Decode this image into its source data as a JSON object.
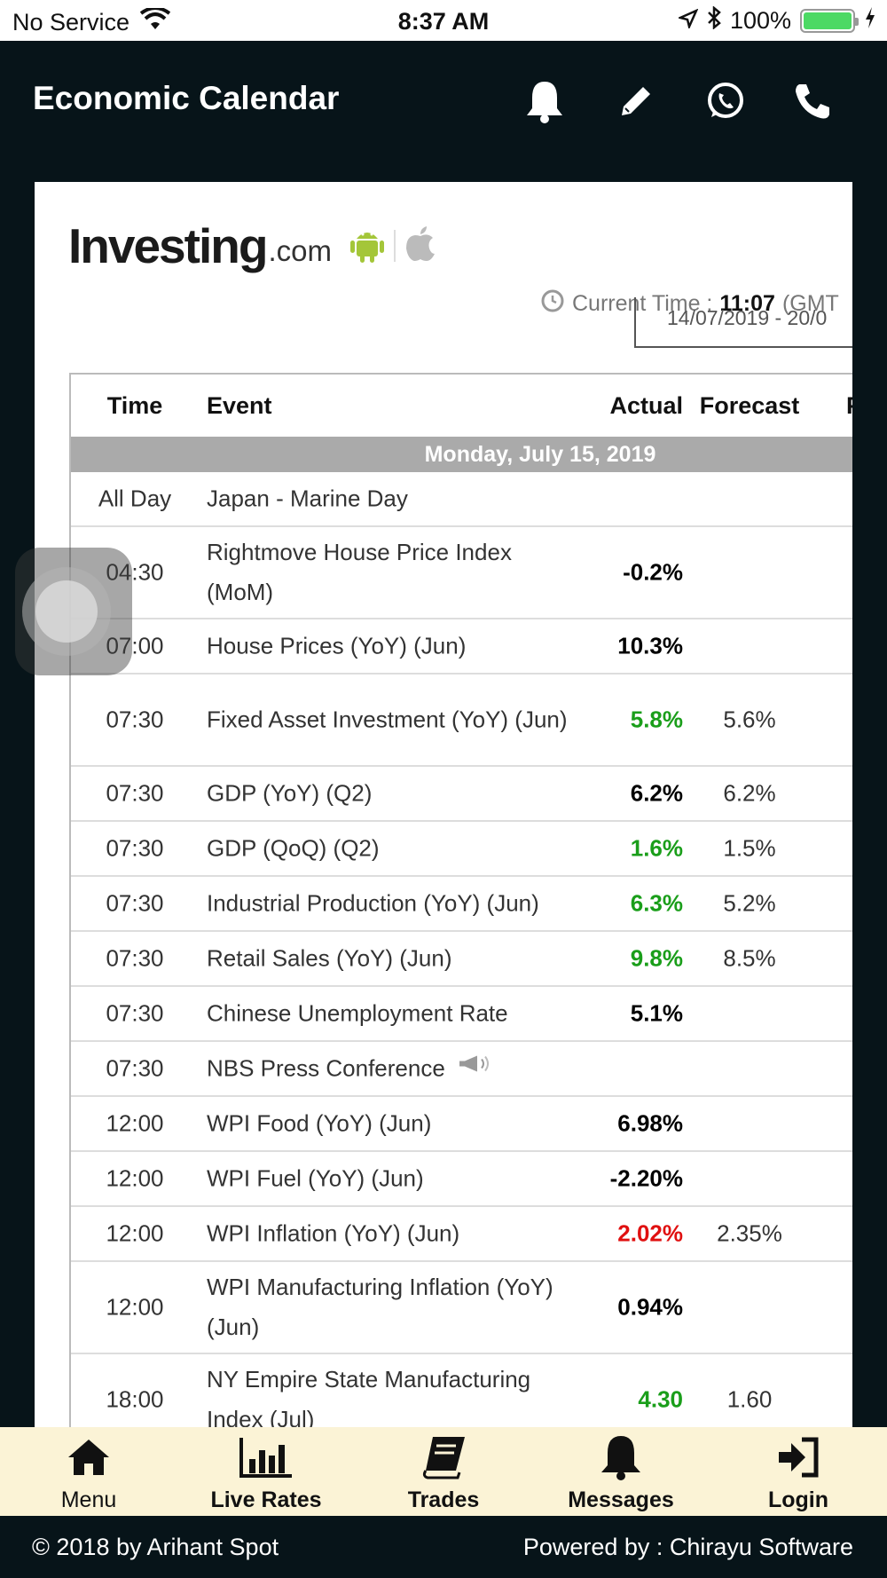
{
  "status_bar": {
    "carrier": "No Service",
    "time": "8:37 AM",
    "battery": "100%"
  },
  "header": {
    "title": "Economic Calendar"
  },
  "card": {
    "logo_text": "Investing",
    "logo_suffix": ".com",
    "current_time_label": "Current Time :",
    "current_time_value": "11:07",
    "timezone": "(GMT",
    "date_range": "14/07/2019 - 20/0",
    "columns": {
      "time": "Time",
      "event": "Event",
      "actual": "Actual",
      "forecast": "Forecast",
      "previous": "P"
    },
    "day_header": "Monday, July 15, 2019",
    "rows": [
      {
        "time": "All Day",
        "event": "Japan - Marine Day",
        "actual": "",
        "forecast": ""
      },
      {
        "time": "04:30",
        "event": "Rightmove House Price Index (MoM)",
        "actual": "-0.2%",
        "forecast": ""
      },
      {
        "time": "07:00",
        "event": "House Prices (YoY) (Jun)",
        "actual": "10.3%",
        "forecast": ""
      },
      {
        "time": "07:30",
        "event": "Fixed Asset Investment (YoY) (Jun)",
        "actual": "5.8%",
        "forecast": "5.6%"
      },
      {
        "time": "07:30",
        "event": "GDP (YoY) (Q2)",
        "actual": "6.2%",
        "forecast": "6.2%"
      },
      {
        "time": "07:30",
        "event": "GDP (QoQ) (Q2)",
        "actual": "1.6%",
        "forecast": "1.5%"
      },
      {
        "time": "07:30",
        "event": "Industrial Production (YoY) (Jun)",
        "actual": "6.3%",
        "forecast": "5.2%"
      },
      {
        "time": "07:30",
        "event": "Retail Sales (YoY) (Jun)",
        "actual": "9.8%",
        "forecast": "8.5%"
      },
      {
        "time": "07:30",
        "event": "Chinese Unemployment Rate",
        "actual": "5.1%",
        "forecast": ""
      },
      {
        "time": "07:30",
        "event": "NBS Press Conference",
        "actual": "",
        "forecast": ""
      },
      {
        "time": "12:00",
        "event": "WPI Food (YoY) (Jun)",
        "actual": "6.98%",
        "forecast": ""
      },
      {
        "time": "12:00",
        "event": "WPI Fuel (YoY) (Jun)",
        "actual": "-2.20%",
        "forecast": ""
      },
      {
        "time": "12:00",
        "event": "WPI Inflation (YoY) (Jun)",
        "actual": "2.02%",
        "forecast": "2.35%"
      },
      {
        "time": "12:00",
        "event": "WPI Manufacturing Inflation (YoY) (Jun)",
        "actual": "0.94%",
        "forecast": ""
      },
      {
        "time": "18:00",
        "event": "NY Empire State Manufacturing Index (Jul)",
        "actual": "4.30",
        "forecast": "1.60"
      }
    ]
  },
  "tabs": [
    {
      "label": "Menu",
      "icon": "home-icon"
    },
    {
      "label": "Live Rates",
      "icon": "bar-chart-icon"
    },
    {
      "label": "Trades",
      "icon": "book-icon"
    },
    {
      "label": "Messages",
      "icon": "bell-icon"
    },
    {
      "label": "Login",
      "icon": "login-icon"
    }
  ],
  "footer": {
    "left": "© 2018 by Arihant Spot",
    "right": "Powered by : Chirayu Software"
  },
  "colors": {
    "header_bg": "#071419",
    "tab_bg": "#fbf3d6",
    "positive": "#1a9e1a",
    "negative": "#e01010",
    "android": "#a4c639"
  }
}
